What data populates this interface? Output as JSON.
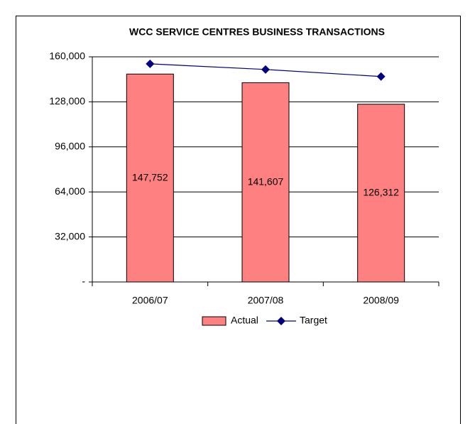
{
  "chart_data": {
    "type": "bar",
    "title": "WCC SERVICE CENTRES  BUSINESS TRANSACTIONS",
    "categories": [
      "2006/07",
      "2007/08",
      "2008/09"
    ],
    "series": [
      {
        "name": "Actual",
        "type": "bar",
        "color": "#ff8080",
        "values": [
          147752,
          141607,
          126312
        ],
        "value_labels": [
          "147,752",
          "141,607",
          "126,312"
        ]
      },
      {
        "name": "Target",
        "type": "line",
        "color": "#000080",
        "values": [
          155000,
          151000,
          146000
        ]
      }
    ],
    "ylim": [
      0,
      160000
    ],
    "yticks": [
      {
        "value": 0,
        "label": "-"
      },
      {
        "value": 32000,
        "label": "32,000"
      },
      {
        "value": 64000,
        "label": "64,000"
      },
      {
        "value": 96000,
        "label": "96,000"
      },
      {
        "value": 128000,
        "label": "128,000"
      },
      {
        "value": 160000,
        "label": "160,000"
      }
    ],
    "grid": true,
    "legend": "bottom"
  }
}
